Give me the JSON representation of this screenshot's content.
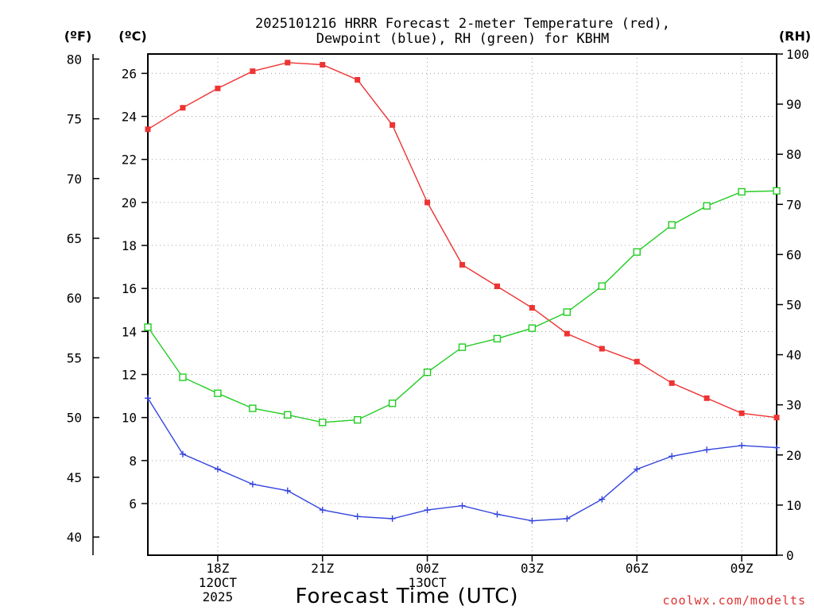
{
  "title_line1": "2025101216 HRRR Forecast 2-meter Temperature (red),",
  "title_line2": "Dewpoint (blue), RH (green) for KBHM",
  "unit_f": "(ºF)",
  "unit_c": "(ºC)",
  "unit_rh": "(RH)",
  "x_title": "Forecast Time (UTC)",
  "credit": "coolwx.com/modelts",
  "colors": {
    "temp": "#ee3333",
    "dew": "#3344dd",
    "rh": "#22cc22",
    "grid": "#a0a0a0",
    "credit": "#e03030"
  },
  "chart_data": {
    "type": "line",
    "title": "2025101216 HRRR Forecast 2-meter Temperature (red), Dewpoint (blue), RH (green) for KBHM",
    "xlabel": "Forecast Time (UTC)",
    "x_hours": [
      16,
      17,
      18,
      19,
      20,
      21,
      22,
      23,
      24,
      25,
      26,
      27,
      28,
      29,
      30,
      31,
      32,
      33,
      34
    ],
    "xlim": [
      16,
      34
    ],
    "x_ticks": [
      {
        "hour": 18,
        "labels": [
          "18Z",
          "12OCT",
          "2025"
        ]
      },
      {
        "hour": 21,
        "labels": [
          "21Z"
        ]
      },
      {
        "hour": 24,
        "labels": [
          "00Z",
          "13OCT"
        ]
      },
      {
        "hour": 27,
        "labels": [
          "03Z"
        ]
      },
      {
        "hour": 30,
        "labels": [
          "06Z"
        ]
      },
      {
        "hour": 33,
        "labels": [
          "09Z"
        ]
      }
    ],
    "y_celsius": {
      "range": [
        3.6,
        26.9
      ],
      "ticks": [
        "6",
        "8",
        "10",
        "12",
        "14",
        "16",
        "18",
        "20",
        "22",
        "24",
        "26"
      ],
      "tick_values": [
        6,
        8,
        10,
        12,
        14,
        16,
        18,
        20,
        22,
        24,
        26
      ]
    },
    "y_fahrenheit": {
      "ticks": [
        "40",
        "45",
        "50",
        "55",
        "60",
        "65",
        "70",
        "75",
        "80"
      ],
      "tick_values": [
        40,
        45,
        50,
        55,
        60,
        65,
        70,
        75,
        80
      ]
    },
    "y_rh": {
      "range": [
        0,
        100
      ],
      "ticks": [
        "0",
        "10",
        "20",
        "30",
        "40",
        "50",
        "60",
        "70",
        "80",
        "90",
        "100"
      ],
      "tick_values": [
        0,
        10,
        20,
        30,
        40,
        50,
        60,
        70,
        80,
        90,
        100
      ]
    },
    "series": [
      {
        "name": "Temperature",
        "unit": "C",
        "axis": "left",
        "values": [
          23.4,
          24.4,
          25.3,
          26.1,
          26.5,
          26.4,
          25.7,
          23.6,
          20.0,
          17.1,
          16.1,
          15.1,
          13.9,
          13.2,
          12.6,
          11.6,
          10.9,
          10.2,
          10.0
        ]
      },
      {
        "name": "Dewpoint",
        "unit": "C",
        "axis": "left",
        "values": [
          10.9,
          8.3,
          7.6,
          6.9,
          6.6,
          5.7,
          5.4,
          5.3,
          5.7,
          5.9,
          5.5,
          5.2,
          5.3,
          6.2,
          7.6,
          8.2,
          8.5,
          8.7,
          8.6
        ]
      },
      {
        "name": "RH",
        "unit": "%",
        "axis": "right",
        "values": [
          45.5,
          35.5,
          32.3,
          29.3,
          28.0,
          26.5,
          27.0,
          30.3,
          36.5,
          41.5,
          43.2,
          45.3,
          48.5,
          53.7,
          60.5,
          65.9,
          69.7,
          72.5,
          72.7
        ]
      }
    ]
  }
}
